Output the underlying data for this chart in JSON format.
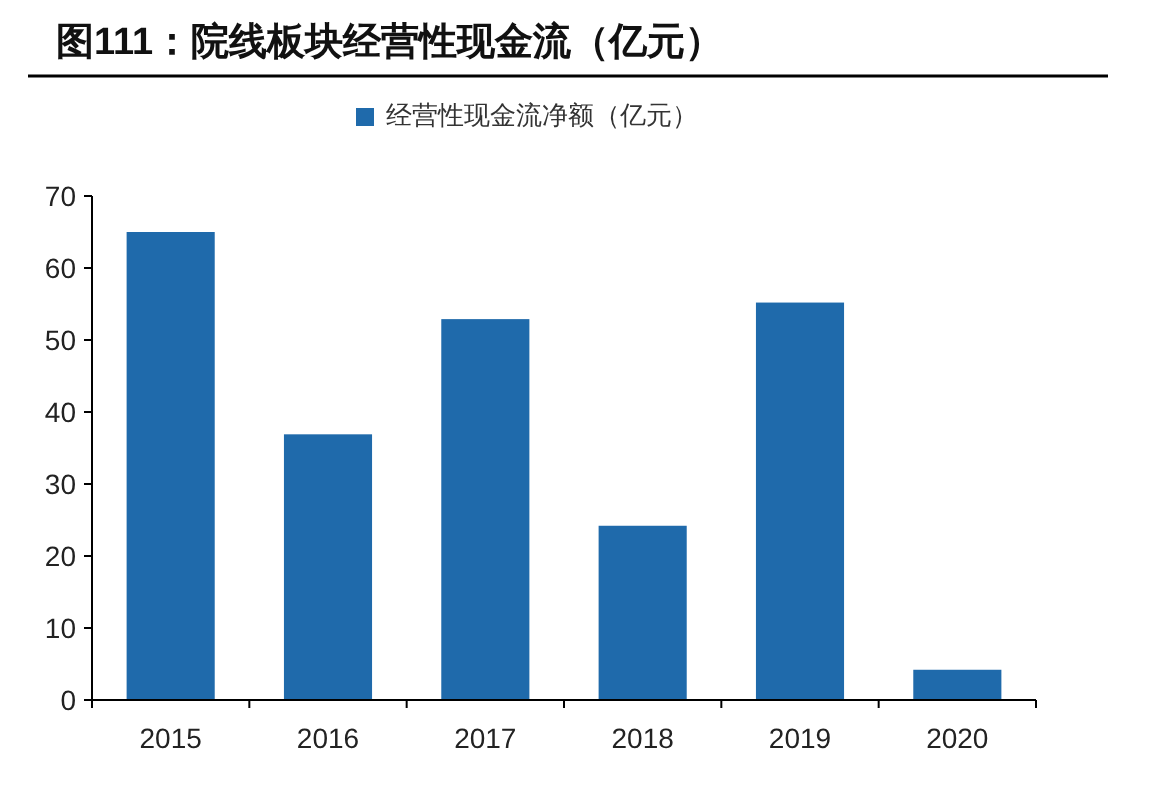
{
  "chart_data": {
    "type": "bar",
    "title": "图111：院线板块经营性现金流（亿元）",
    "categories": [
      "2015",
      "2016",
      "2017",
      "2018",
      "2019",
      "2020"
    ],
    "series": [
      {
        "name": "经营性现金流净额（亿元）",
        "color": "#1f6aab",
        "values": [
          65,
          36.9,
          52.9,
          24.2,
          55.2,
          4.2
        ]
      }
    ],
    "ylim": [
      0,
      70
    ],
    "yticks": [
      0,
      10,
      20,
      30,
      40,
      50,
      60,
      70
    ],
    "grid": false,
    "legend": "top"
  }
}
